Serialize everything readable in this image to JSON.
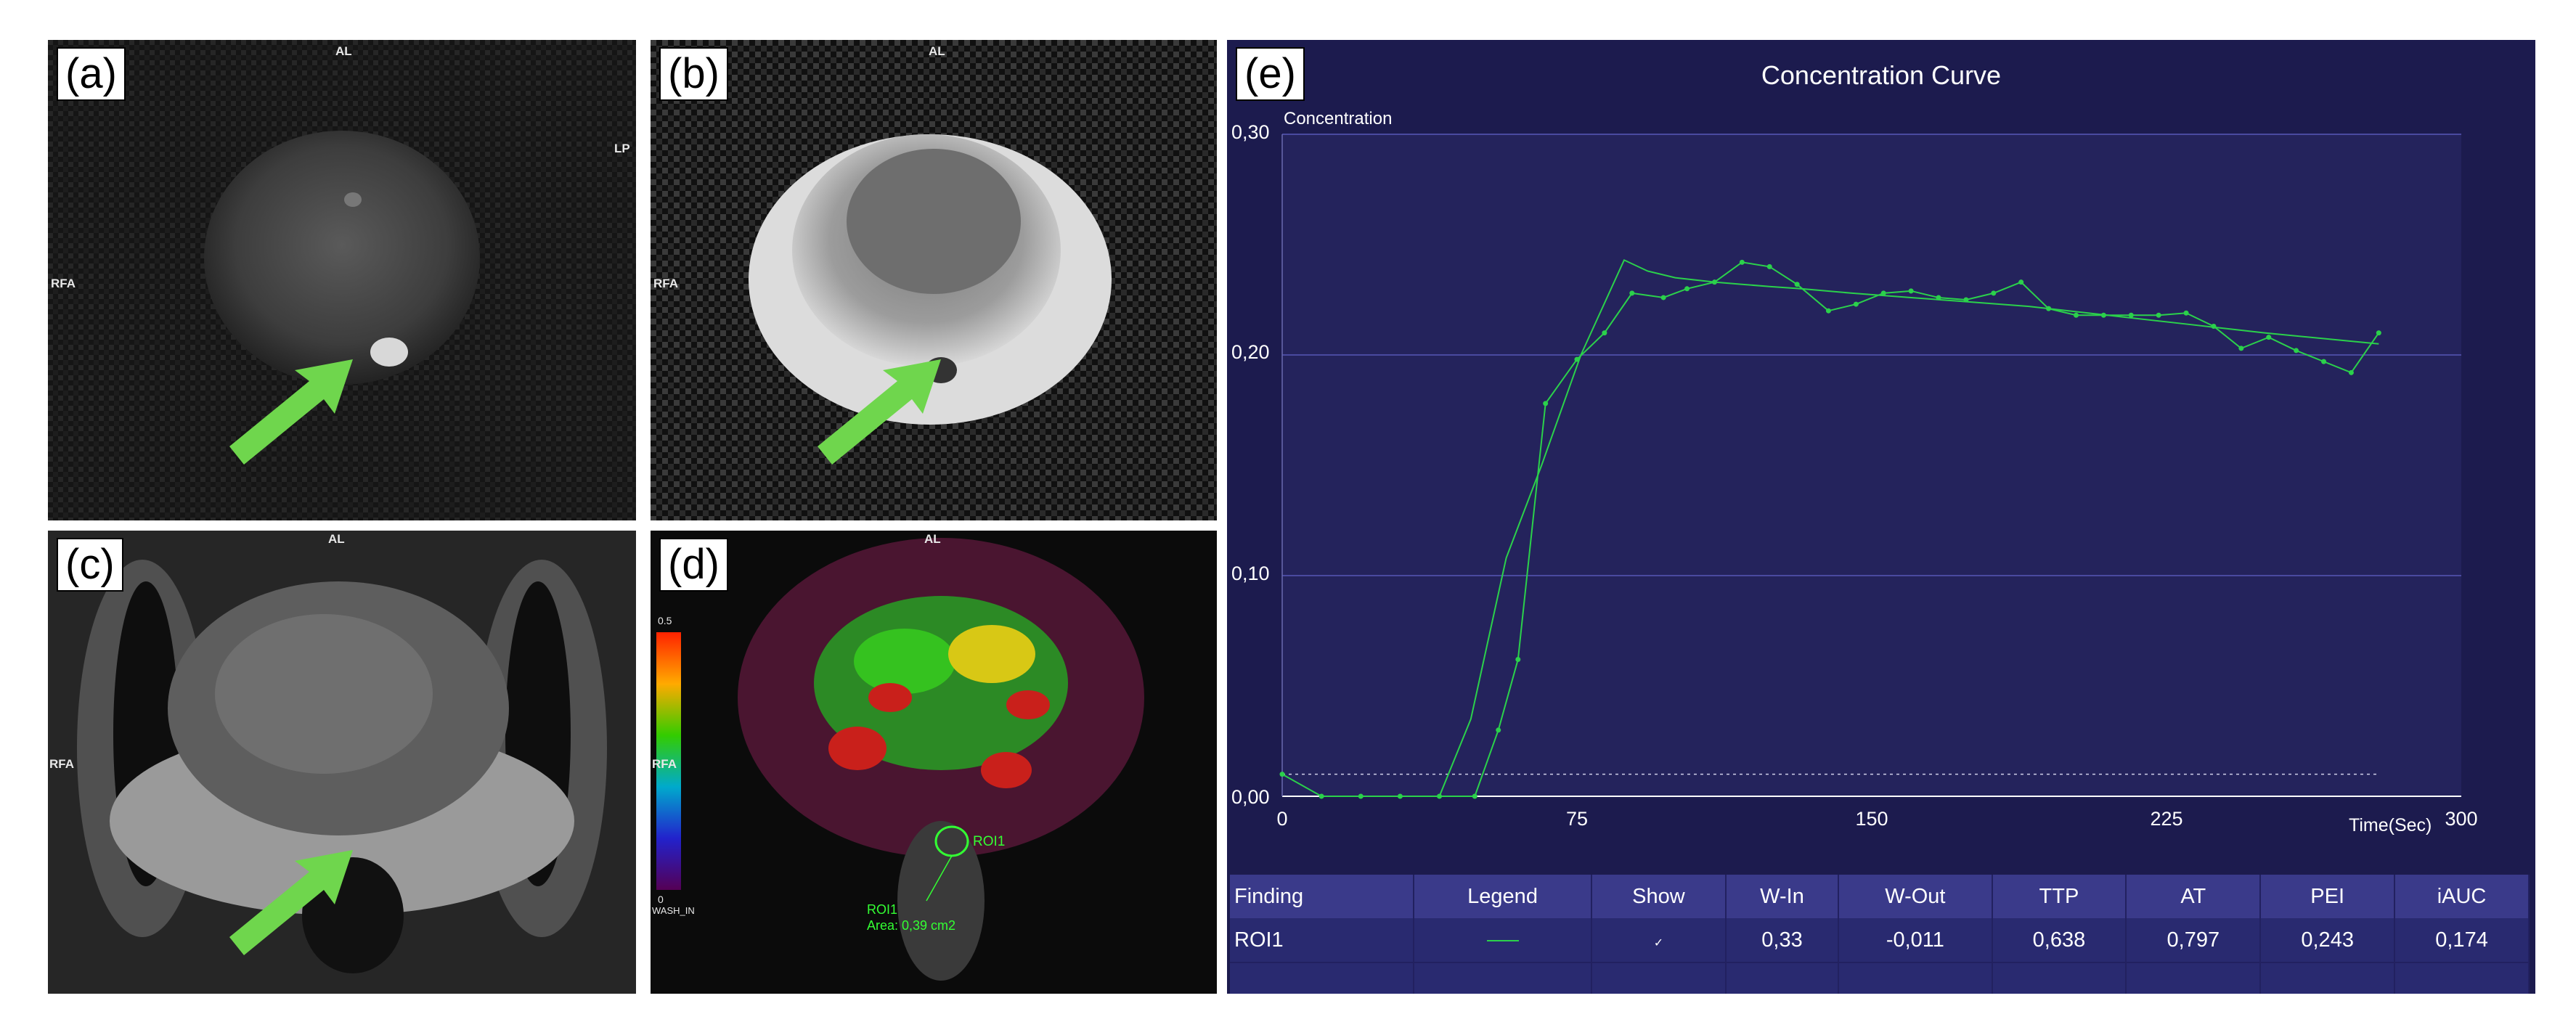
{
  "panels": {
    "a": {
      "label": "(a)",
      "top": "AL",
      "left": "RFA",
      "right": "LP"
    },
    "b": {
      "label": "(b)",
      "top": "AL",
      "left": "RFA"
    },
    "c": {
      "label": "(c)",
      "top": "AL",
      "left": "RFA"
    },
    "d": {
      "label": "(d)",
      "top": "AL",
      "left": "RFA",
      "colorbar_max": "0.5",
      "colorbar_min": "0",
      "colorbar_name": "WASH_IN",
      "roi_name": "ROI1",
      "roi_caption": "ROI1",
      "roi_area": "Area: 0,39 cm2"
    }
  },
  "colors": {
    "panel_bg": "#1c1b4e",
    "plot_bg": "#24235c",
    "curve": "#2bd14b",
    "arrow": "#6fd64d",
    "roi": "#33ff33"
  },
  "curve_panel": {
    "label": "(e)",
    "title": "Concentration Curve",
    "ylabel": "Concentration",
    "xlabel": "Time(Sec)",
    "yticks": [
      "0,30",
      "0,20",
      "0,10",
      "0,00"
    ],
    "xticks": [
      "0",
      "75",
      "150",
      "225",
      "300"
    ],
    "table": {
      "headers": [
        "Finding",
        "Legend",
        "Show",
        "W-In",
        "W-Out",
        "TTP",
        "AT",
        "PEI",
        "iAUC"
      ],
      "row": {
        "finding": "ROI1",
        "show": "✓",
        "w_in": "0,33",
        "w_out": "-0,011",
        "ttp": "0,638",
        "at": "0,797",
        "pei": "0,243",
        "iauc": "0,174"
      }
    }
  },
  "chart_data": {
    "type": "line",
    "title": "Concentration Curve",
    "xlabel": "Time(Sec)",
    "ylabel": "Concentration",
    "xlim": [
      0,
      300
    ],
    "ylim": [
      0,
      0.3
    ],
    "x_ticks": [
      0,
      75,
      150,
      225,
      300
    ],
    "y_ticks": [
      0,
      0.1,
      0.2,
      0.3
    ],
    "grid": "horizontal",
    "baseline": 0.01,
    "series": [
      {
        "x": [
          0,
          10,
          20,
          30,
          40,
          49,
          55,
          60,
          67,
          75,
          82,
          89,
          97,
          103,
          110,
          117,
          124,
          131,
          139,
          146,
          153,
          160,
          167,
          174,
          181,
          188,
          195,
          202,
          209,
          216,
          223,
          230,
          237,
          244,
          251,
          258,
          265,
          272,
          279
        ],
        "values": [
          0.01,
          0.0,
          0.0,
          0.0,
          0.0,
          0.0,
          0.03,
          0.062,
          0.178,
          0.198,
          0.21,
          0.228,
          0.226,
          0.23,
          0.233,
          0.242,
          0.24,
          0.232,
          0.22,
          0.223,
          0.228,
          0.229,
          0.226,
          0.225,
          0.228,
          0.233,
          0.221,
          0.218,
          0.218,
          0.218,
          0.218,
          0.219,
          0.213,
          0.203,
          0.208,
          0.202,
          0.197,
          0.192,
          0.21
        ]
      },
      {
        "x": [
          40,
          48,
          57,
          66,
          76,
          87,
          93,
          100,
          110,
          117,
          124,
          132,
          145,
          160,
          175,
          190,
          210,
          230,
          250,
          279
        ],
        "values": [
          0.0,
          0.035,
          0.108,
          0.15,
          0.2,
          0.243,
          0.238,
          0.235,
          0.233,
          0.232,
          0.231,
          0.23,
          0.228,
          0.226,
          0.224,
          0.222,
          0.218,
          0.214,
          0.21,
          0.205
        ]
      }
    ]
  }
}
